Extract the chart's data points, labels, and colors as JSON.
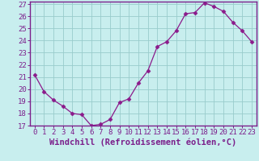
{
  "x": [
    0,
    1,
    2,
    3,
    4,
    5,
    6,
    7,
    8,
    9,
    10,
    11,
    12,
    13,
    14,
    15,
    16,
    17,
    18,
    19,
    20,
    21,
    22,
    23
  ],
  "y": [
    21.2,
    19.8,
    19.1,
    18.6,
    18.0,
    17.9,
    17.0,
    17.1,
    17.5,
    18.9,
    19.2,
    20.5,
    21.5,
    23.5,
    23.9,
    24.8,
    26.2,
    26.3,
    27.1,
    26.8,
    26.4,
    25.5,
    24.8,
    23.9
  ],
  "line_color": "#8b1a8b",
  "marker": "D",
  "marker_size": 2.5,
  "bg_color": "#c8eeee",
  "grid_color": "#99cccc",
  "xlabel": "Windchill (Refroidissement éolien,°C)",
  "ylim": [
    17,
    27
  ],
  "xlim": [
    -0.5,
    23.5
  ],
  "yticks": [
    17,
    18,
    19,
    20,
    21,
    22,
    23,
    24,
    25,
    26,
    27
  ],
  "xticks": [
    0,
    1,
    2,
    3,
    4,
    5,
    6,
    7,
    8,
    9,
    10,
    11,
    12,
    13,
    14,
    15,
    16,
    17,
    18,
    19,
    20,
    21,
    22,
    23
  ],
  "xtick_labels": [
    "0",
    "1",
    "2",
    "3",
    "4",
    "5",
    "6",
    "7",
    "8",
    "9",
    "10",
    "11",
    "12",
    "13",
    "14",
    "15",
    "16",
    "17",
    "18",
    "19",
    "20",
    "21",
    "22",
    "23"
  ],
  "label_color": "#7b1e8b",
  "tick_fontsize": 6.5,
  "xlabel_fontsize": 7.5,
  "axis_color": "#7b1e8b",
  "spine_color": "#7b1e8b"
}
